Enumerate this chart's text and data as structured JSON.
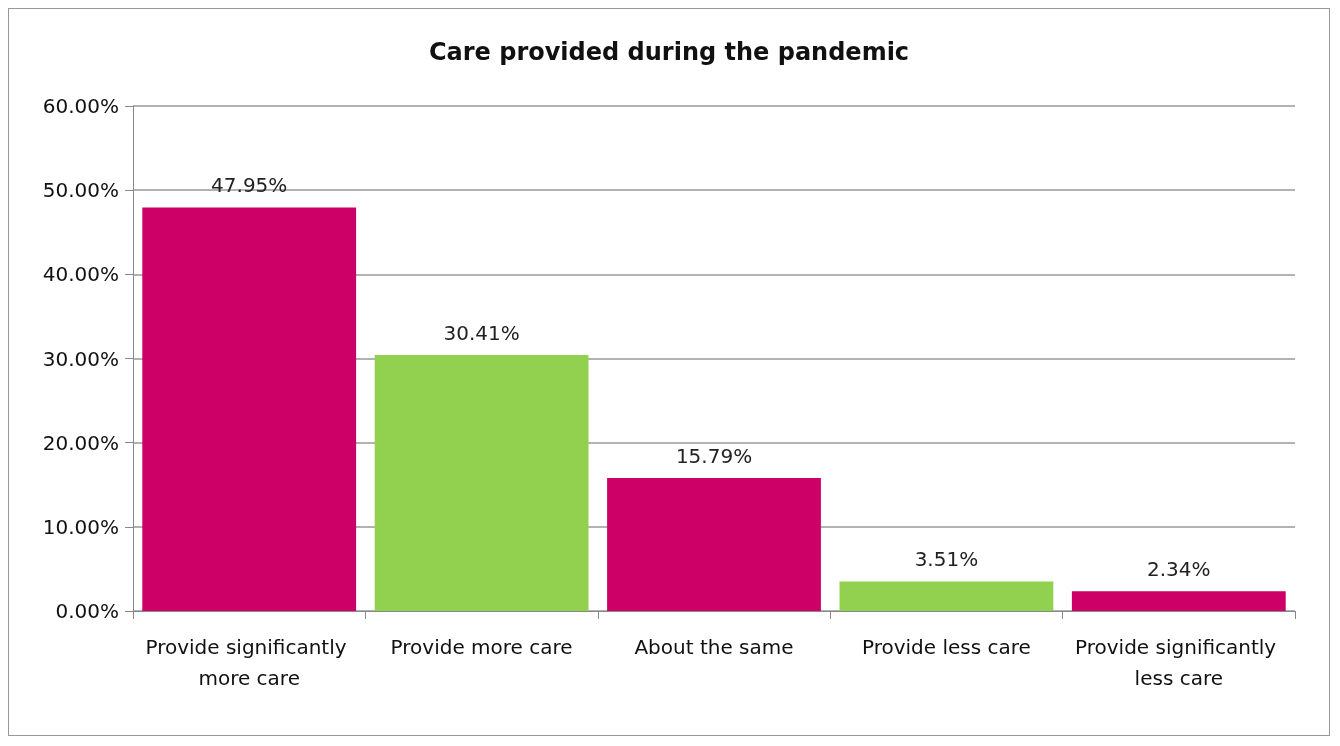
{
  "chart_data": {
    "type": "bar",
    "title": "Care provided during the pandemic",
    "categories": [
      "Provide significantly more care",
      "Provide more care",
      "About the same",
      "Provide less care",
      "Provide significantly less care"
    ],
    "values": [
      47.95,
      30.41,
      15.79,
      3.51,
      2.34
    ],
    "colors": [
      "#cc0066",
      "#92d050",
      "#cc0066",
      "#92d050",
      "#cc0066"
    ],
    "value_labels": [
      "47.95%",
      "30.41%",
      "15.79%",
      "3.51%",
      "2.34%"
    ],
    "ylim": [
      0,
      60
    ],
    "yticks": [
      {
        "value": 0,
        "label": "0.00%"
      },
      {
        "value": 10,
        "label": "10.00%"
      },
      {
        "value": 20,
        "label": "20.00%"
      },
      {
        "value": 30,
        "label": "30.00%"
      },
      {
        "value": 40,
        "label": "40.00%"
      },
      {
        "value": 50,
        "label": "50.00%"
      },
      {
        "value": 60,
        "label": "60.00%"
      }
    ],
    "grid": "y"
  }
}
